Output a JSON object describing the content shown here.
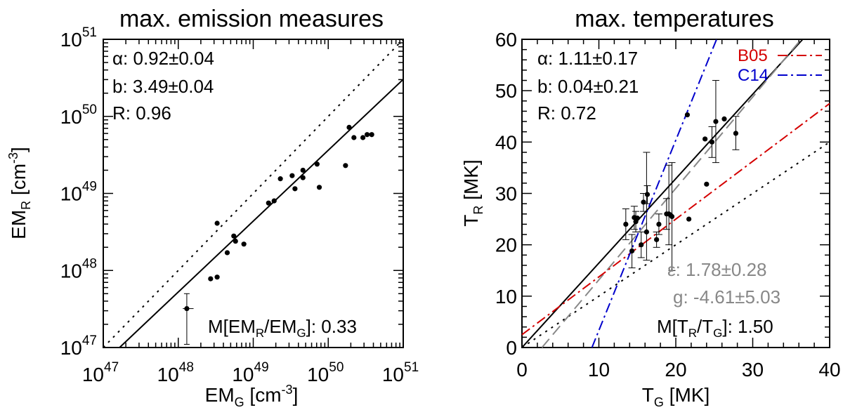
{
  "chart_data": [
    {
      "type": "scatter",
      "title": "max. emission measures",
      "xlabel": "EM_G [cm^-3]",
      "ylabel": "EM_R [cm^-3]",
      "xscale": "log",
      "yscale": "log",
      "xlim": [
        1e+47,
        1e+51
      ],
      "ylim": [
        1e+47,
        1e+51
      ],
      "x_ticks": [
        {
          "base": "10",
          "exp": "47"
        },
        {
          "base": "10",
          "exp": "48"
        },
        {
          "base": "10",
          "exp": "49"
        },
        {
          "base": "10",
          "exp": "50"
        },
        {
          "base": "10",
          "exp": "51"
        }
      ],
      "y_ticks": [
        {
          "base": "10",
          "exp": "47"
        },
        {
          "base": "10",
          "exp": "48"
        },
        {
          "base": "10",
          "exp": "49"
        },
        {
          "base": "10",
          "exp": "50"
        },
        {
          "base": "10",
          "exp": "51"
        }
      ],
      "annotations": {
        "alpha": "α: 0.92±0.04",
        "b": "b: 3.49±0.04",
        "r": "R: 0.96",
        "median_prefix": "M[EM",
        "median_mid": "/EM",
        "median_suffix": "]: 0.33",
        "median_sub_r": "R",
        "median_sub_g": "G"
      },
      "lines": [
        {
          "name": "one-to-one",
          "style": "dotted",
          "log_x": [
            47,
            51
          ],
          "log_y": [
            47,
            51
          ]
        },
        {
          "name": "fit",
          "style": "solid",
          "log_x": [
            47,
            51
          ],
          "log_y": [
            46.8,
            50.48
          ]
        }
      ],
      "points": [
        {
          "x": 1.3e+48,
          "y": 3.2e+47,
          "yerr": [
            1.1e+47,
            5e+47
          ],
          "xerr": [
            1.15e+48,
            1.6e+48
          ]
        },
        {
          "x": 2.7e+48,
          "y": 7.8e+47
        },
        {
          "x": 3.3e+48,
          "y": 8.2e+47
        },
        {
          "x": 3.3e+48,
          "y": 4.1e+48
        },
        {
          "x": 4.5e+48,
          "y": 1.7e+48
        },
        {
          "x": 5.5e+48,
          "y": 2.8e+48
        },
        {
          "x": 5.8e+48,
          "y": 2.4e+48
        },
        {
          "x": 7.5e+48,
          "y": 2.2e+48
        },
        {
          "x": 1.6e+49,
          "y": 7.5e+48
        },
        {
          "x": 1.9e+49,
          "y": 8e+48
        },
        {
          "x": 2.3e+49,
          "y": 1.55e+49
        },
        {
          "x": 3.3e+49,
          "y": 1.7e+49
        },
        {
          "x": 3.6e+49,
          "y": 1.15e+49
        },
        {
          "x": 4.6e+49,
          "y": 2e+49
        },
        {
          "x": 4.6e+49,
          "y": 1.6e+49
        },
        {
          "x": 7.1e+49,
          "y": 2.4e+49
        },
        {
          "x": 7.6e+49,
          "y": 1.2e+49
        },
        {
          "x": 1.7e+50,
          "y": 2.3e+49
        },
        {
          "x": 1.9e+50,
          "y": 7.2e+49
        },
        {
          "x": 2.2e+50,
          "y": 5.3e+49
        },
        {
          "x": 2.9e+50,
          "y": 5.3e+49
        },
        {
          "x": 3.3e+50,
          "y": 5.8e+49
        },
        {
          "x": 3.8e+50,
          "y": 5.8e+49
        }
      ]
    },
    {
      "type": "scatter",
      "title": "max. temperatures",
      "xlabel": "T_G [MK]",
      "ylabel": "T_R [MK]",
      "xlim": [
        0,
        40
      ],
      "ylim": [
        0,
        60
      ],
      "x_ticks": [
        0,
        10,
        20,
        30,
        40
      ],
      "y_ticks": [
        0,
        10,
        20,
        30,
        40,
        50,
        60
      ],
      "annotations": {
        "alpha": "α: 1.11±0.17",
        "b": "b: 0.04±0.21",
        "r": "R: 0.72",
        "eps": "ε: 1.78±0.28",
        "g": "g: -4.61±5.03",
        "median_prefix": "M[T",
        "median_mid": "/T",
        "median_suffix": "]: 1.50",
        "median_sub_r": "R",
        "median_sub_g": "G"
      },
      "legend": [
        {
          "name": "B05",
          "color": "#d40000",
          "style": "dash-dot"
        },
        {
          "name": "C14",
          "color": "#0000cc",
          "style": "dash-dot"
        }
      ],
      "lines": [
        {
          "name": "one-to-one",
          "style": "dotted",
          "color": "#000000",
          "x": [
            0,
            40
          ],
          "y": [
            0,
            40
          ]
        },
        {
          "name": "fit",
          "style": "solid",
          "color": "#000000",
          "x": [
            0,
            36.5
          ],
          "y": [
            0,
            60
          ]
        },
        {
          "name": "gray-dashed",
          "style": "dashed",
          "color": "#888888",
          "x": [
            2.6,
            36.3
          ],
          "y": [
            0,
            60
          ]
        },
        {
          "name": "B05",
          "style": "dash-dot",
          "color": "#d40000",
          "x": [
            0,
            40
          ],
          "y": [
            2.5,
            47.5
          ]
        },
        {
          "name": "C14",
          "style": "dash-dot",
          "color": "#0000cc",
          "x": [
            9.1,
            25.3
          ],
          "y": [
            0,
            60
          ]
        }
      ],
      "points": [
        {
          "x": 13.5,
          "y": 24.0,
          "yerr": [
            21.0,
            27.0
          ]
        },
        {
          "x": 14.3,
          "y": 18.8,
          "yerr": [
            15.5,
            22.0
          ]
        },
        {
          "x": 14.6,
          "y": 25.3,
          "yerr": [
            23.0,
            27.5
          ]
        },
        {
          "x": 14.8,
          "y": 24.5,
          "yerr": [
            22.5,
            26.5
          ]
        },
        {
          "x": 15.0,
          "y": 25.2
        },
        {
          "x": 15.5,
          "y": 20.0,
          "yerr": [
            17.5,
            22.5
          ]
        },
        {
          "x": 15.8,
          "y": 28.3,
          "yerr": [
            26.5,
            30.0
          ]
        },
        {
          "x": 16.2,
          "y": 22.5,
          "yerr": [
            17.0,
            38.0
          ]
        },
        {
          "x": 16.3,
          "y": 29.8,
          "yerr": [
            28.0,
            31.5
          ]
        },
        {
          "x": 17.5,
          "y": 21.0,
          "yerr": [
            19.5,
            22.5
          ]
        },
        {
          "x": 17.8,
          "y": 24.0,
          "yerr": [
            22.0,
            26.0
          ]
        },
        {
          "x": 18.8,
          "y": 26.0,
          "yerr": [
            23.0,
            29.0
          ]
        },
        {
          "x": 19.1,
          "y": 26.0,
          "yerr": [
            20.0,
            35.5
          ]
        },
        {
          "x": 19.3,
          "y": 25.8
        },
        {
          "x": 19.5,
          "y": 25.5,
          "yerr": [
            15.0,
            36.0
          ]
        },
        {
          "x": 21.5,
          "y": 45.3
        },
        {
          "x": 21.7,
          "y": 25.0
        },
        {
          "x": 23.8,
          "y": 40.6
        },
        {
          "x": 24.0,
          "y": 31.8
        },
        {
          "x": 24.7,
          "y": 40.0,
          "yerr": [
            37.0,
            43.0
          ]
        },
        {
          "x": 25.2,
          "y": 44.0,
          "yerr": [
            36.0,
            52.0
          ]
        },
        {
          "x": 26.3,
          "y": 44.5
        },
        {
          "x": 27.8,
          "y": 41.7,
          "yerr": [
            38.5,
            45.0
          ]
        }
      ]
    }
  ]
}
